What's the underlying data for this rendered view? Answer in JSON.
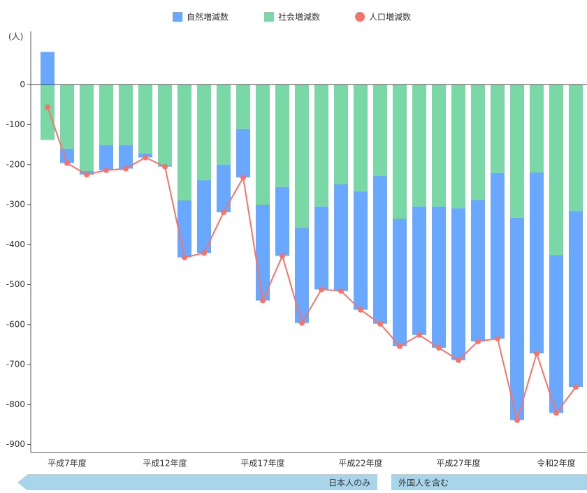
{
  "chart_data": {
    "type": "bar",
    "y_label": "(人)",
    "categories": [
      null,
      "平成7年度",
      null,
      null,
      null,
      null,
      "平成12年度",
      null,
      null,
      null,
      null,
      "平成17年度",
      null,
      null,
      null,
      null,
      "平成22年度",
      null,
      null,
      null,
      null,
      "平成27年度",
      null,
      null,
      null,
      null,
      "令和2年度",
      null
    ],
    "series": [
      {
        "name": "自然増減数",
        "color": "#6aa7ff",
        "values": [
          82,
          -36,
          -9,
          -63,
          -59,
          -10,
          -3,
          -143,
          -182,
          -119,
          -121,
          -240,
          -172,
          -238,
          -207,
          -267,
          -296,
          -370,
          -319,
          -321,
          -353,
          -380,
          -354,
          -414,
          -506,
          -453,
          -395,
          -440
        ]
      },
      {
        "name": "社会増減数",
        "color": "#79d8a6",
        "values": [
          -138,
          -160,
          -216,
          -151,
          -151,
          -172,
          -202,
          -289,
          -239,
          -200,
          -111,
          -300,
          -256,
          -358,
          -305,
          -249,
          -267,
          -228,
          -335,
          -305,
          -305,
          -309,
          -288,
          -221,
          -333,
          -219,
          -426,
          -316
        ]
      },
      {
        "name": "人口増減数",
        "color": "#f4746c",
        "type": "line",
        "values": [
          -56,
          -196,
          -225,
          -214,
          -210,
          -182,
          -205,
          -432,
          -421,
          -319,
          -232,
          -540,
          -428,
          -596,
          -512,
          -516,
          -563,
          -598,
          -654,
          -626,
          -658,
          -689,
          -642,
          -635,
          -839,
          -672,
          -821,
          -756
        ]
      }
    ],
    "ylim": [
      -920,
      100
    ],
    "yticks": [
      0,
      -100,
      -200,
      -300,
      -400,
      -500,
      -600,
      -700,
      -800,
      -900
    ],
    "annotations": [
      "日本人のみ",
      "外国人を含む"
    ]
  }
}
